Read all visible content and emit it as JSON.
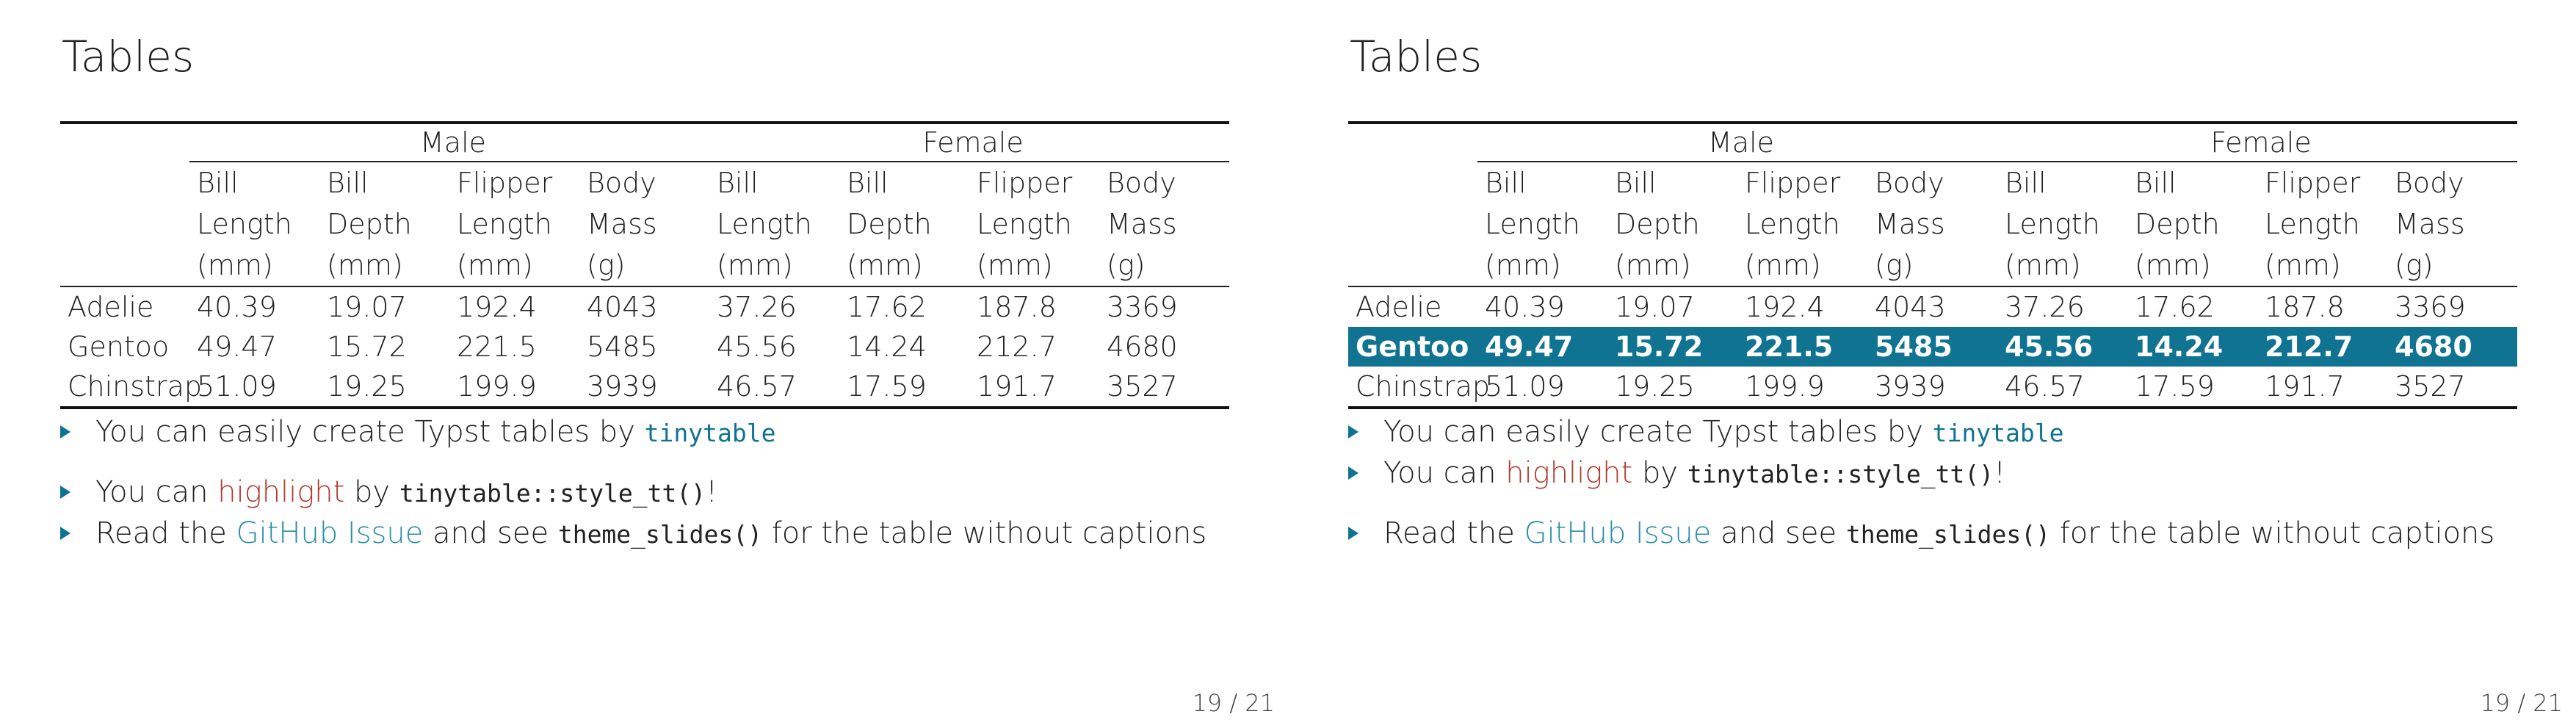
{
  "slides": [
    {
      "title": "Tables",
      "highlight_row": -1,
      "groups": [
        "Male",
        "Female"
      ],
      "columns": [
        [
          "Bill",
          "Length",
          "(mm)"
        ],
        [
          "Bill",
          "Depth",
          "(mm)"
        ],
        [
          "Flipper",
          "Length",
          "(mm)"
        ],
        [
          "Body",
          "Mass",
          "(g)"
        ],
        [
          "Bill",
          "Length",
          "(mm)"
        ],
        [
          "Bill",
          "Depth",
          "(mm)"
        ],
        [
          "Flipper",
          "Length",
          "(mm)"
        ],
        [
          "Body",
          "Mass",
          "(g)"
        ]
      ],
      "rows": [
        [
          "Adelie",
          "40.39",
          "19.07",
          "192.4",
          "4043",
          "37.26",
          "17.62",
          "187.8",
          "3369"
        ],
        [
          "Gentoo",
          "49.47",
          "15.72",
          "221.5",
          "5485",
          "45.56",
          "14.24",
          "212.7",
          "4680"
        ],
        [
          "Chinstrap",
          "51.09",
          "19.25",
          "199.9",
          "3939",
          "46.57",
          "17.59",
          "191.7",
          "3527"
        ]
      ],
      "bullets": {
        "b1_pre": "You can easily create Typst tables by ",
        "b1_code": "tinytable",
        "b2_pre": "You can ",
        "b2_red": "highlight",
        "b2_mid": " by ",
        "b2_code": "tinytable::style_tt()",
        "b2_post": "!",
        "b3_pre": "Read the ",
        "b3_link": "GitHub Issue",
        "b3_mid": " and see ",
        "b3_code": "theme_slides()",
        "b3_post": " for the table without captions"
      },
      "page": "19 / 21"
    },
    {
      "title": "Tables",
      "highlight_row": 1,
      "groups": [
        "Male",
        "Female"
      ],
      "columns": [
        [
          "Bill",
          "Length",
          "(mm)"
        ],
        [
          "Bill",
          "Depth",
          "(mm)"
        ],
        [
          "Flipper",
          "Length",
          "(mm)"
        ],
        [
          "Body",
          "Mass",
          "(g)"
        ],
        [
          "Bill",
          "Length",
          "(mm)"
        ],
        [
          "Bill",
          "Depth",
          "(mm)"
        ],
        [
          "Flipper",
          "Length",
          "(mm)"
        ],
        [
          "Body",
          "Mass",
          "(g)"
        ]
      ],
      "rows": [
        [
          "Adelie",
          "40.39",
          "19.07",
          "192.4",
          "4043",
          "37.26",
          "17.62",
          "187.8",
          "3369"
        ],
        [
          "Gentoo",
          "49.47",
          "15.72",
          "221.5",
          "5485",
          "45.56",
          "14.24",
          "212.7",
          "4680"
        ],
        [
          "Chinstrap",
          "51.09",
          "19.25",
          "199.9",
          "3939",
          "46.57",
          "17.59",
          "191.7",
          "3527"
        ]
      ],
      "bullets": {
        "b1_pre": "You can easily create Typst tables by ",
        "b1_code": "tinytable",
        "b2_pre": "You can ",
        "b2_red": "highlight",
        "b2_mid": " by ",
        "b2_code": "tinytable::style_tt()",
        "b2_post": "!",
        "b3_pre": "Read the ",
        "b3_link": "GitHub Issue",
        "b3_mid": " and see ",
        "b3_code": "theme_slides()",
        "b3_post": " for the table without captions"
      },
      "page": "19 / 21"
    }
  ]
}
